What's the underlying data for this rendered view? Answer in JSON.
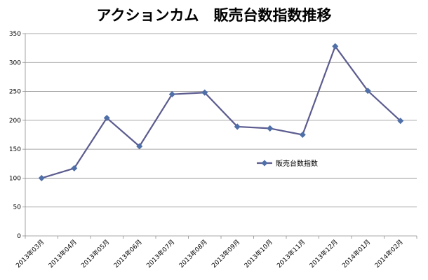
{
  "chart_data": {
    "type": "line",
    "title": "アクションカム　販売台数指数推移",
    "xlabel": "",
    "ylabel": "",
    "categories": [
      "2013年03月",
      "2013年04月",
      "2013年05月",
      "2013年06月",
      "2013年07月",
      "2013年08月",
      "2013年09月",
      "2013年10月",
      "2013年11月",
      "2013年12月",
      "2014年01月",
      "2014年02月"
    ],
    "series": [
      {
        "name": "販売台数指数",
        "values": [
          100,
          117,
          204,
          155,
          245,
          248,
          189,
          186,
          175,
          328,
          251,
          199
        ]
      }
    ],
    "ylim": [
      0,
      350
    ],
    "yticks": [
      0,
      50,
      100,
      150,
      200,
      250,
      300,
      350
    ],
    "grid": "horizontal",
    "legend_position": "right",
    "colors": {
      "line": "#5b5b8f",
      "marker": "#4f6fa8",
      "grid": "#8c8c8c",
      "axis": "#8c8c8c"
    }
  }
}
